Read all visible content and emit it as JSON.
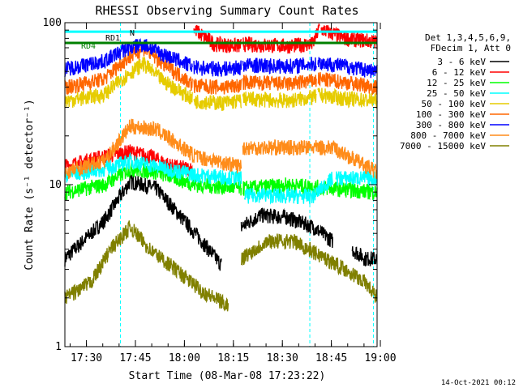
{
  "chart_data": {
    "type": "line",
    "title": "RHESSI Observing Summary Count Rates",
    "xlabel": "Start Time (08-Mar-08 17:23:22)",
    "ylabel": "Count Rate (s⁻¹ detector⁻¹)",
    "yscale": "log",
    "ylim": [
      1,
      100
    ],
    "xlim_minutes": [
      0,
      95.6
    ],
    "x_ticks": [
      "17:30",
      "17:45",
      "18:00",
      "18:15",
      "18:30",
      "18:45",
      "19:00"
    ],
    "y_ticks": [
      "1",
      "10",
      "100"
    ],
    "footer_date": "14-Oct-2021 00:12",
    "legend": {
      "header_lines": [
        "Det 1,3,4,5,6,9,",
        "FDecim 1, Att 0"
      ],
      "placement": "right"
    },
    "flag_labels": [
      "RD1",
      "RD4",
      "N"
    ],
    "series": [
      {
        "name": "3 - 6 keV",
        "color": "#000000",
        "segments": [
          {
            "x": [
              0,
              12,
              20,
              28,
              40,
              48
            ],
            "y": [
              3.5,
              6,
              10.5,
              9.5,
              5,
              3.2
            ]
          },
          {
            "x": [
              54,
              60,
              68,
              76,
              82
            ],
            "y": [
              5.5,
              6.5,
              6.3,
              5.5,
              4.5
            ]
          },
          {
            "x": [
              88,
              92,
              95.6
            ],
            "y": [
              4,
              3.5,
              3.5
            ]
          }
        ]
      },
      {
        "name": "6 - 12 keV",
        "color": "#ff0000",
        "segments": [
          {
            "x": [
              0,
              12,
              20,
              26,
              33,
              39
            ],
            "y": [
              13,
              15,
              16,
              15,
              13,
              12.5
            ]
          },
          {
            "x": [
              39.5,
              46,
              54
            ],
            "y": [
              91,
              74,
              72
            ]
          },
          {
            "x": [
              54.5,
              60,
              68,
              76,
              78
            ],
            "y": [
              74,
              73,
              72,
              74,
              94
            ]
          },
          {
            "x": [
              78.5,
              86,
              92,
              95.6
            ],
            "y": [
              91,
              80,
              78,
              76
            ]
          }
        ]
      },
      {
        "name": "12 - 25 keV",
        "color": "#00ff00",
        "segments": [
          {
            "x": [
              0,
              12,
              20,
              28,
              40,
              54
            ],
            "y": [
              9,
              10,
              12.5,
              12,
              10,
              9.5
            ]
          },
          {
            "x": [
              54.5,
              68,
              82,
              95.6
            ],
            "y": [
              9.5,
              10,
              9.5,
              9
            ]
          }
        ]
      },
      {
        "name": "25 - 50 keV",
        "color": "#00ffff",
        "segments": [
          {
            "x": [
              0,
              12,
              20,
              28,
              40,
              54
            ],
            "y": [
              11.5,
              12.5,
              14,
              13,
              11.5,
              11
            ]
          },
          {
            "x": [
              55,
              60,
              68,
              76,
              82
            ],
            "y": [
              8.5,
              8.7,
              8.5,
              8.5,
              11
            ]
          },
          {
            "x": [
              83,
              95.6
            ],
            "y": [
              11,
              11
            ]
          }
        ]
      },
      {
        "name": "50 - 100 keV",
        "color": "#e6cc00",
        "segments": [
          {
            "x": [
              0,
              12,
              18,
              24,
              30,
              39
            ],
            "y": [
              33,
              36,
              46,
              56,
              44,
              34
            ]
          },
          {
            "x": [
              39.5,
              48,
              54
            ],
            "y": [
              33,
              32,
              33
            ]
          },
          {
            "x": [
              54.5,
              68,
              77
            ],
            "y": [
              34,
              33,
              35
            ]
          },
          {
            "x": [
              77.5,
              86,
              95.6
            ],
            "y": [
              36,
              34,
              33
            ]
          }
        ]
      },
      {
        "name": "100 - 300 keV",
        "color": "#ff6600",
        "segments": [
          {
            "x": [
              0,
              12,
              18,
              24,
              30,
              39
            ],
            "y": [
              40,
              45,
              58,
              70,
              56,
              42
            ]
          },
          {
            "x": [
              39.5,
              48,
              54
            ],
            "y": [
              41,
              40,
              41
            ]
          },
          {
            "x": [
              54.5,
              68,
              77
            ],
            "y": [
              43,
              42,
              44
            ]
          },
          {
            "x": [
              77.5,
              86,
              95.6
            ],
            "y": [
              45,
              43,
              40
            ]
          }
        ]
      },
      {
        "name": "300 - 800 keV",
        "color": "#0000ff",
        "segments": [
          {
            "x": [
              0,
              12,
              18,
              24,
              30,
              39
            ],
            "y": [
              52,
              58,
              68,
              74,
              64,
              54
            ]
          },
          {
            "x": [
              39.5,
              48,
              54
            ],
            "y": [
              53,
              52,
              53
            ]
          },
          {
            "x": [
              54.5,
              68,
              77
            ],
            "y": [
              55,
              54,
              56
            ]
          },
          {
            "x": [
              77.5,
              86,
              95.6
            ],
            "y": [
              57,
              54,
              50
            ]
          }
        ]
      },
      {
        "name": "800 - 7000 keV",
        "color": "#ff8c1a",
        "segments": [
          {
            "x": [
              0,
              12,
              20,
              28,
              40,
              54
            ],
            "y": [
              12,
              14,
              23,
              22,
              15,
              13
            ]
          },
          {
            "x": [
              54.5,
              68,
              82,
              95.6
            ],
            "y": [
              17,
              17,
              17,
              12
            ]
          }
        ]
      },
      {
        "name": "7000 - 15000 keV",
        "color": "#808000",
        "segments": [
          {
            "x": [
              0,
              8,
              14,
              20,
              26,
              34,
              42,
              50
            ],
            "y": [
              2,
              2.5,
              4,
              5.5,
              4,
              3,
              2.2,
              1.8
            ]
          },
          {
            "x": [
              54,
              62,
              70,
              80,
              86,
              92,
              95.6
            ],
            "y": [
              3.5,
              4.5,
              4.5,
              3.5,
              3,
              2.5,
              2
            ]
          }
        ]
      }
    ],
    "flag_bars": [
      {
        "label": "RD1",
        "color": "#00ffff",
        "x_start": 0,
        "x_end": 95.6,
        "y": 88
      },
      {
        "label": "RD4",
        "color": "#008000",
        "x_start": 0,
        "x_end": 95.6,
        "y": 75
      }
    ],
    "vertical_markers": [
      {
        "x": 17,
        "style": "dashed",
        "color": "#00ffff"
      },
      {
        "x": 75,
        "style": "dashed",
        "color": "#00ffff"
      },
      {
        "x": 94.5,
        "style": "dashed",
        "color": "#00ffff"
      }
    ]
  }
}
